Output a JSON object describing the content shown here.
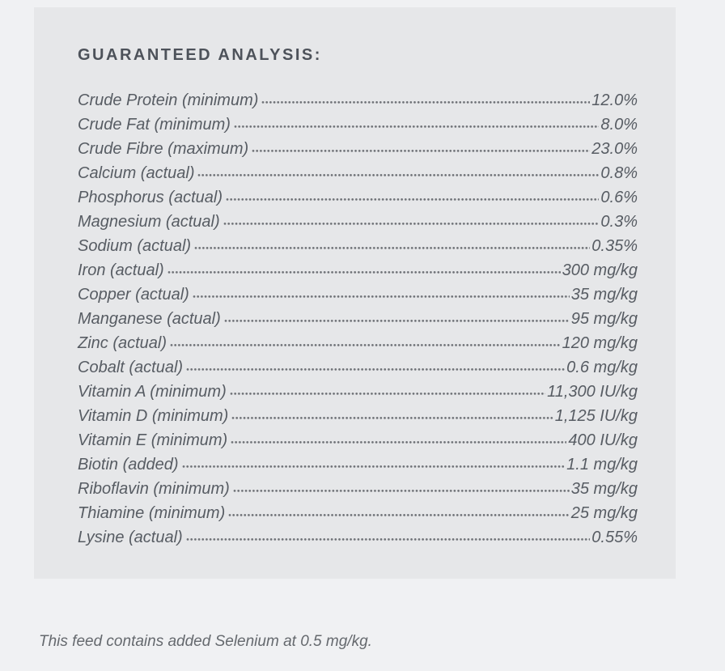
{
  "analysis": {
    "title": "GUARANTEED ANALYSIS:",
    "rows": [
      {
        "label": "Crude Protein (minimum)",
        "value": "12.0%"
      },
      {
        "label": "Crude Fat (minimum)",
        "value": "8.0%"
      },
      {
        "label": "Crude Fibre (maximum)",
        "value": "23.0%"
      },
      {
        "label": "Calcium (actual)",
        "value": "0.8%"
      },
      {
        "label": "Phosphorus (actual)",
        "value": "0.6%"
      },
      {
        "label": "Magnesium (actual)",
        "value": "0.3%"
      },
      {
        "label": "Sodium (actual)",
        "value": "0.35%"
      },
      {
        "label": "Iron (actual)",
        "value": "300 mg/kg"
      },
      {
        "label": "Copper (actual)",
        "value": "35 mg/kg"
      },
      {
        "label": "Manganese (actual)",
        "value": "95 mg/kg"
      },
      {
        "label": "Zinc (actual)",
        "value": "120 mg/kg"
      },
      {
        "label": "Cobalt (actual)",
        "value": "0.6 mg/kg"
      },
      {
        "label": "Vitamin A (minimum)",
        "value": "11,300 IU/kg"
      },
      {
        "label": "Vitamin D (minimum)",
        "value": "1,125 IU/kg"
      },
      {
        "label": "Vitamin E (minimum)",
        "value": "400 IU/kg"
      },
      {
        "label": "Biotin (added)",
        "value": "1.1 mg/kg"
      },
      {
        "label": "Riboflavin (minimum)",
        "value": "35 mg/kg"
      },
      {
        "label": "Thiamine (minimum)",
        "value": "25 mg/kg"
      },
      {
        "label": "Lysine (actual)",
        "value": "0.55%"
      }
    ],
    "footnote": "This feed contains added Selenium at 0.5 mg/kg."
  },
  "colors": {
    "page_background": "#f0f1f3",
    "panel_background": "#e6e7e9",
    "title_text": "#4d525a",
    "row_text": "#575c63",
    "dot_leader": "#6f7277",
    "footnote_text": "#65696e"
  }
}
